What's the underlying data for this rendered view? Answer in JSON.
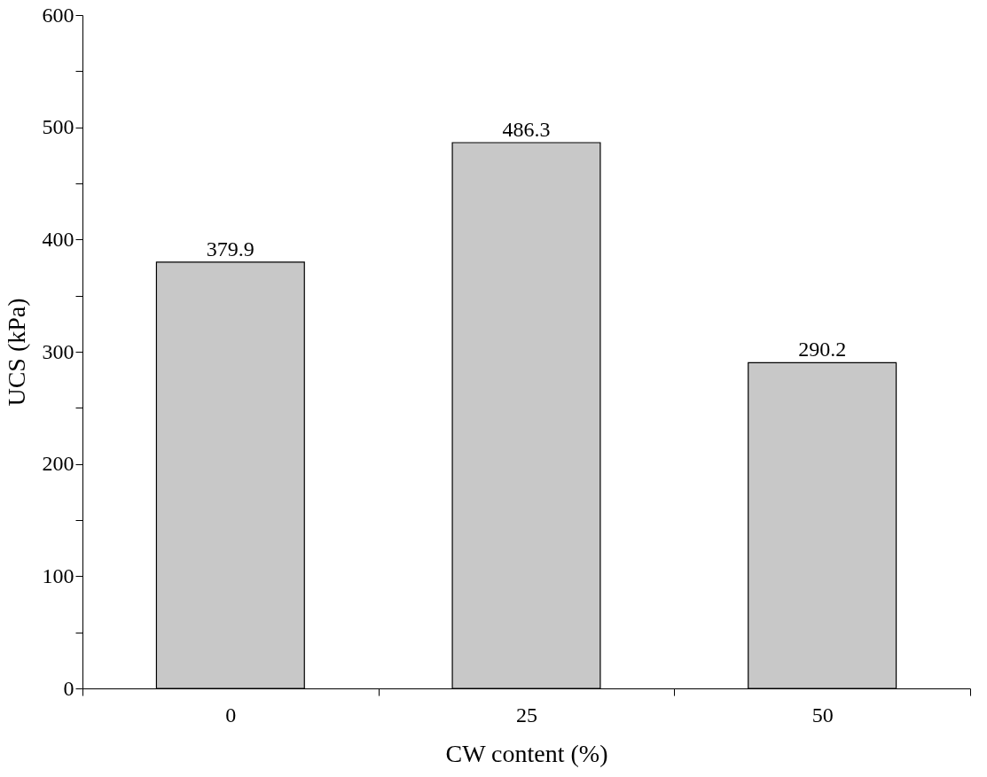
{
  "chart_data": {
    "type": "bar",
    "xlabel": "CW content (%)",
    "ylabel": "UCS (kPa)",
    "categories": [
      "0",
      "25",
      "50"
    ],
    "values": [
      379.9,
      486.3,
      290.2
    ],
    "color": "#c8c8c8",
    "ylim": [
      0,
      600
    ],
    "yticks": [
      0,
      {
        "value": 50,
        "label": null
      },
      100,
      {
        "value": 150,
        "label": null
      },
      200,
      {
        "value": 250,
        "label": null
      },
      300,
      {
        "value": 350,
        "label": null
      },
      400,
      {
        "value": 450,
        "label": null
      },
      500,
      {
        "value": 550,
        "label": null
      },
      600
    ],
    "data_labels": true,
    "grid": false
  }
}
